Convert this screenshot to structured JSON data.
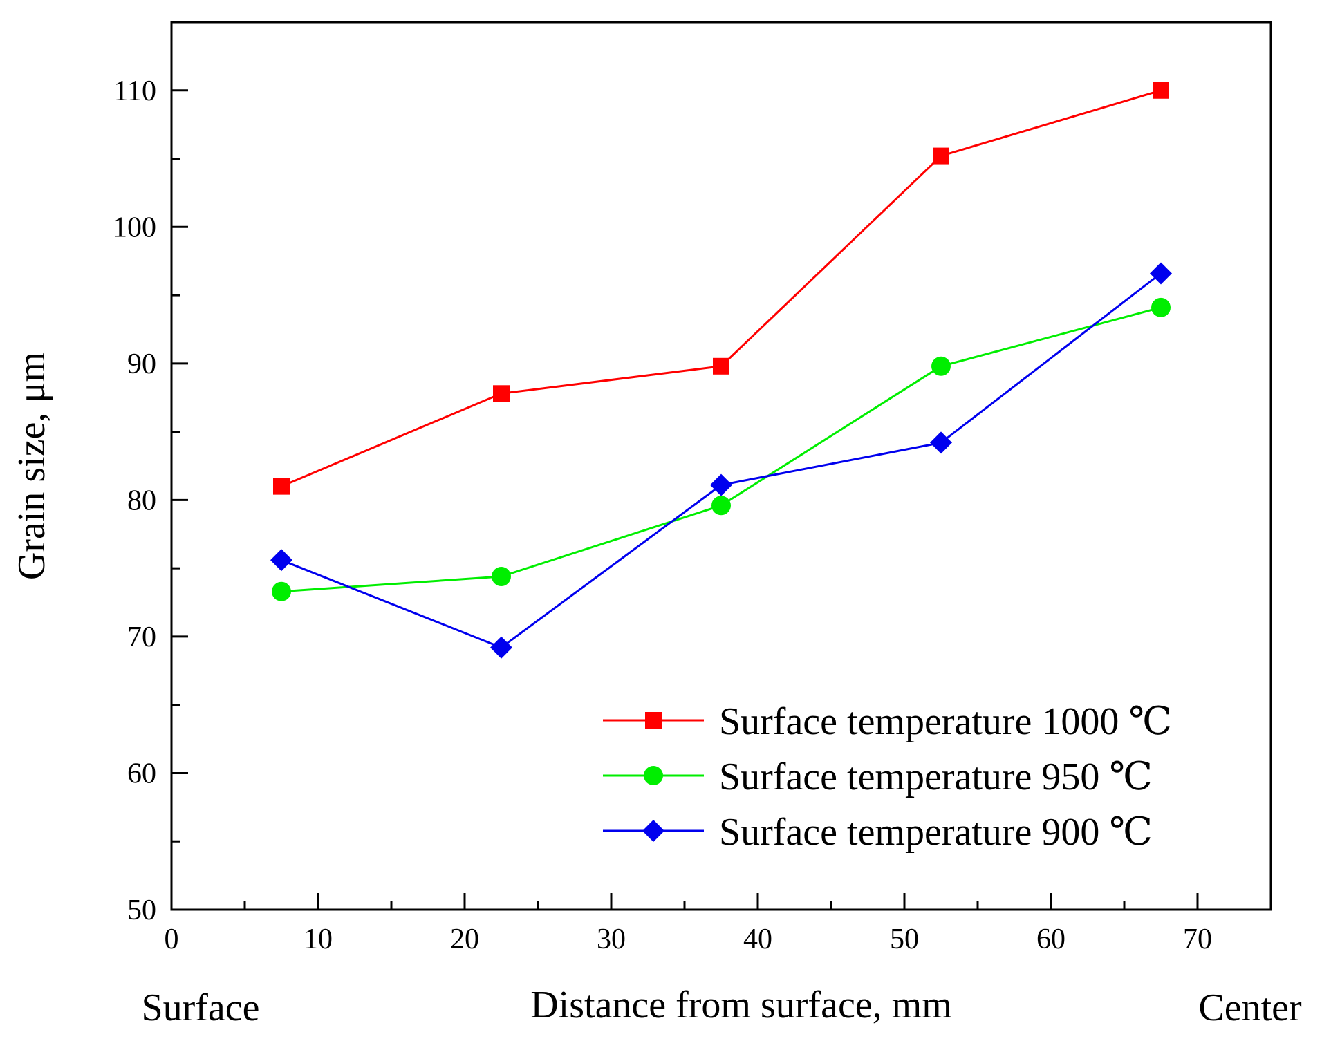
{
  "chart_data": {
    "type": "line",
    "title": "",
    "xlabel": "Distance from surface, mm",
    "ylabel": "Grain size, μm",
    "x_left_label": "Surface",
    "x_right_label": "Center",
    "xlim": [
      0,
      75
    ],
    "ylim": [
      50,
      115
    ],
    "x_ticks": [
      0,
      10,
      20,
      30,
      40,
      50,
      60,
      70
    ],
    "x_tick_labels": [
      "0",
      "10",
      "20",
      "30",
      "40",
      "50",
      "60",
      "70"
    ],
    "y_ticks": [
      50,
      60,
      70,
      80,
      90,
      100,
      110
    ],
    "y_tick_labels": [
      "50",
      "60",
      "70",
      "80",
      "90",
      "100",
      "110"
    ],
    "x_minor_ticks": [
      5,
      15,
      25,
      35,
      45,
      55,
      65
    ],
    "y_minor_ticks": [
      55,
      65,
      75,
      85,
      95,
      105
    ],
    "grid": false,
    "legend_position": "bottom-right",
    "x": [
      7.5,
      22.5,
      37.5,
      52.5,
      67.5
    ],
    "series": [
      {
        "name": "Surface temperature 1000 ℃",
        "color": "#ff0000",
        "marker": "square",
        "values": [
          81.0,
          87.8,
          89.8,
          105.2,
          110.0
        ]
      },
      {
        "name": "Surface temperature 950 ℃",
        "color": "#00ee00",
        "marker": "circle",
        "values": [
          73.3,
          74.4,
          79.6,
          89.8,
          94.1
        ]
      },
      {
        "name": "Surface temperature 900 ℃",
        "color": "#0000ee",
        "marker": "diamond",
        "values": [
          75.6,
          69.2,
          81.1,
          84.2,
          96.6
        ]
      }
    ]
  }
}
